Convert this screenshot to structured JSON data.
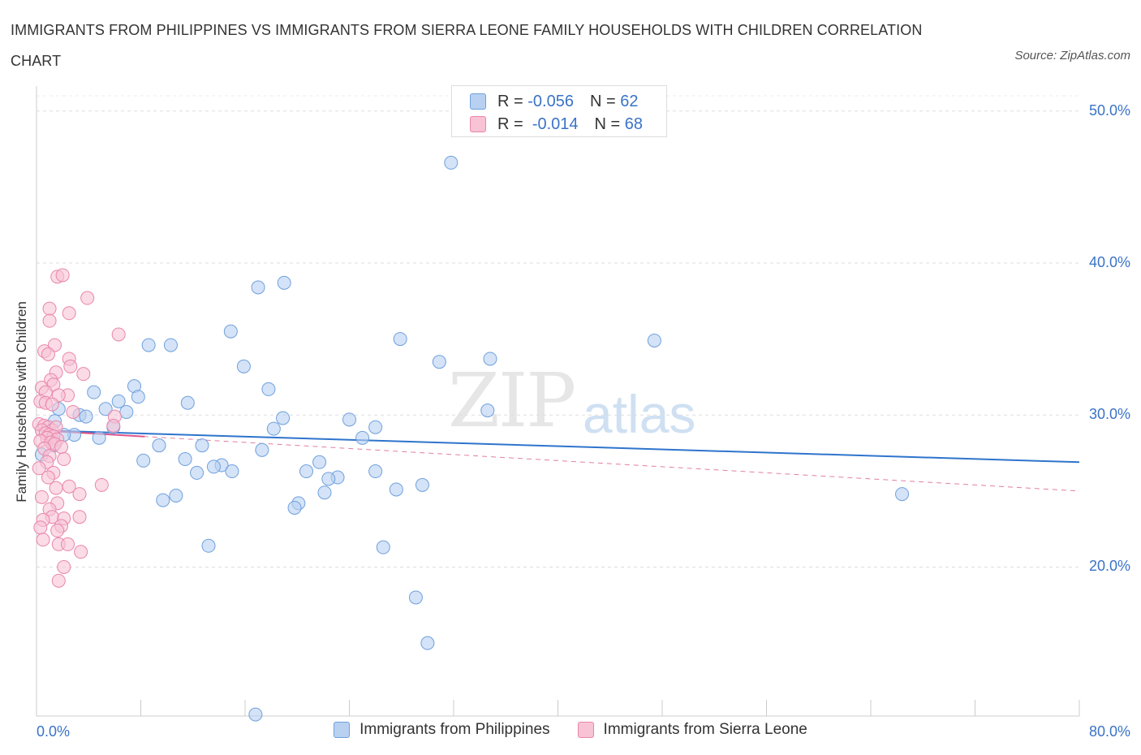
{
  "chart_data": {
    "type": "scatter",
    "title": "IMMIGRANTS FROM PHILIPPINES VS IMMIGRANTS FROM SIERRA LEONE FAMILY HOUSEHOLDS WITH CHILDREN CORRELATION CHART",
    "source": "Source: ZipAtlas.com",
    "xlabel": "",
    "ylabel": "Family Households with Children",
    "xlim": [
      0,
      80
    ],
    "ylim": [
      10.2,
      51
    ],
    "x_tick_labels": {
      "left": "0.0%",
      "right": "80.0%"
    },
    "y_ticks": [
      {
        "value": 20,
        "label": "20.0%"
      },
      {
        "value": 30,
        "label": "30.0%"
      },
      {
        "value": 40,
        "label": "40.0%"
      },
      {
        "value": 50,
        "label": "50.0%"
      }
    ],
    "watermark": {
      "zip": "ZIP",
      "atlas": "atlas"
    },
    "legend": [
      {
        "r_label": "R =",
        "r_value": "-0.056",
        "n_label": "N =",
        "n_value": "62"
      },
      {
        "r_label": "R =",
        "r_value": "-0.014",
        "n_label": "N =",
        "n_value": "68"
      }
    ],
    "series": [
      {
        "name": "Immigrants from Philippines",
        "color": "#6fa0dd",
        "fill": "#b8d1f1",
        "trend": {
          "x0": 0,
          "y0": 29.0,
          "x1": 80,
          "y1": 26.9,
          "style": "solid",
          "color": "#2e74cc"
        },
        "points": [
          [
            31.8,
            46.6
          ],
          [
            19.0,
            38.7
          ],
          [
            17.0,
            38.4
          ],
          [
            14.9,
            35.5
          ],
          [
            27.9,
            35.0
          ],
          [
            47.4,
            34.9
          ],
          [
            10.3,
            34.6
          ],
          [
            8.6,
            34.6
          ],
          [
            34.8,
            33.7
          ],
          [
            30.9,
            33.5
          ],
          [
            15.9,
            33.2
          ],
          [
            7.5,
            31.9
          ],
          [
            17.8,
            31.7
          ],
          [
            4.4,
            31.5
          ],
          [
            7.8,
            31.2
          ],
          [
            6.3,
            30.9
          ],
          [
            11.6,
            30.8
          ],
          [
            5.3,
            30.4
          ],
          [
            1.7,
            30.4
          ],
          [
            6.9,
            30.2
          ],
          [
            3.3,
            30.0
          ],
          [
            3.8,
            29.9
          ],
          [
            34.6,
            30.3
          ],
          [
            1.4,
            29.6
          ],
          [
            24.0,
            29.7
          ],
          [
            18.9,
            29.8
          ],
          [
            26.0,
            29.2
          ],
          [
            18.2,
            29.1
          ],
          [
            5.9,
            29.2
          ],
          [
            2.9,
            28.7
          ],
          [
            2.1,
            28.7
          ],
          [
            25.0,
            28.5
          ],
          [
            4.8,
            28.5
          ],
          [
            1.3,
            28.0
          ],
          [
            9.4,
            28.0
          ],
          [
            12.7,
            28.0
          ],
          [
            17.3,
            27.7
          ],
          [
            8.2,
            27.0
          ],
          [
            11.4,
            27.1
          ],
          [
            21.7,
            26.9
          ],
          [
            14.2,
            26.7
          ],
          [
            13.6,
            26.6
          ],
          [
            26.0,
            26.3
          ],
          [
            20.7,
            26.3
          ],
          [
            12.3,
            26.2
          ],
          [
            15.0,
            26.3
          ],
          [
            23.1,
            25.9
          ],
          [
            22.4,
            25.8
          ],
          [
            29.6,
            25.4
          ],
          [
            27.6,
            25.1
          ],
          [
            22.1,
            24.9
          ],
          [
            10.7,
            24.7
          ],
          [
            9.7,
            24.4
          ],
          [
            66.4,
            24.8
          ],
          [
            20.1,
            24.2
          ],
          [
            19.8,
            23.9
          ],
          [
            13.2,
            21.4
          ],
          [
            26.6,
            21.3
          ],
          [
            29.1,
            18.0
          ],
          [
            30.0,
            15.0
          ],
          [
            16.8,
            10.3
          ],
          [
            0.4,
            27.4
          ]
        ]
      },
      {
        "name": "Immigrants from Sierra Leone",
        "color": "#e986aa",
        "fill": "#f7c3d5",
        "trend": {
          "x0": 0,
          "y0": 29.0,
          "x1": 80,
          "y1": 25.0,
          "style": "dashed",
          "color": "#e27fa2"
        },
        "points": [
          [
            1.6,
            39.1
          ],
          [
            2.0,
            39.2
          ],
          [
            3.9,
            37.7
          ],
          [
            1.0,
            37.0
          ],
          [
            2.5,
            36.7
          ],
          [
            1.0,
            36.2
          ],
          [
            6.3,
            35.3
          ],
          [
            1.4,
            34.6
          ],
          [
            0.6,
            34.2
          ],
          [
            0.9,
            34.0
          ],
          [
            2.5,
            33.7
          ],
          [
            2.6,
            33.2
          ],
          [
            1.5,
            32.8
          ],
          [
            3.6,
            32.7
          ],
          [
            1.1,
            32.3
          ],
          [
            1.3,
            32.0
          ],
          [
            0.4,
            31.8
          ],
          [
            0.7,
            31.5
          ],
          [
            2.4,
            31.3
          ],
          [
            1.7,
            31.3
          ],
          [
            0.3,
            30.9
          ],
          [
            0.7,
            30.8
          ],
          [
            1.2,
            30.7
          ],
          [
            6.0,
            29.9
          ],
          [
            0.2,
            29.4
          ],
          [
            0.6,
            29.3
          ],
          [
            0.9,
            29.2
          ],
          [
            1.2,
            29.0
          ],
          [
            1.5,
            29.2
          ],
          [
            0.4,
            29.0
          ],
          [
            0.7,
            28.8
          ],
          [
            1.0,
            28.7
          ],
          [
            1.3,
            28.6
          ],
          [
            0.8,
            28.5
          ],
          [
            1.6,
            28.4
          ],
          [
            0.3,
            28.3
          ],
          [
            1.1,
            28.2
          ],
          [
            5.9,
            29.3
          ],
          [
            1.4,
            28.1
          ],
          [
            0.6,
            27.8
          ],
          [
            1.9,
            27.9
          ],
          [
            1.0,
            27.3
          ],
          [
            2.1,
            27.1
          ],
          [
            0.8,
            26.9
          ],
          [
            0.2,
            26.5
          ],
          [
            1.3,
            26.2
          ],
          [
            5.0,
            25.4
          ],
          [
            2.5,
            25.3
          ],
          [
            1.5,
            25.2
          ],
          [
            3.3,
            24.8
          ],
          [
            0.4,
            24.6
          ],
          [
            1.6,
            24.2
          ],
          [
            1.0,
            23.8
          ],
          [
            3.3,
            23.3
          ],
          [
            1.2,
            23.3
          ],
          [
            0.5,
            23.1
          ],
          [
            2.1,
            23.2
          ],
          [
            1.9,
            22.7
          ],
          [
            1.6,
            22.4
          ],
          [
            1.7,
            21.5
          ],
          [
            2.4,
            21.5
          ],
          [
            3.4,
            21.0
          ],
          [
            2.1,
            20.0
          ],
          [
            1.7,
            19.1
          ],
          [
            0.3,
            22.6
          ],
          [
            0.5,
            21.8
          ],
          [
            0.9,
            25.9
          ],
          [
            2.8,
            30.2
          ]
        ]
      }
    ]
  }
}
